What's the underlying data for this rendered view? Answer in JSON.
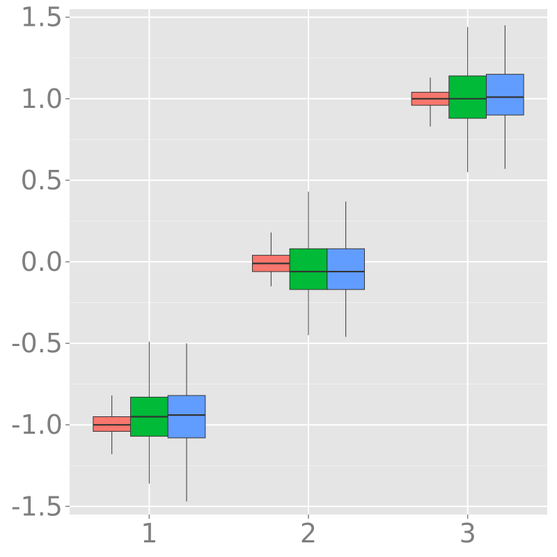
{
  "chart_data": {
    "type": "box",
    "categories": [
      "1",
      "2",
      "3"
    ],
    "ylim": [
      -1.55,
      1.55
    ],
    "yticks": [
      -1.5,
      -1.0,
      -0.5,
      0.0,
      0.5,
      1.0,
      1.5
    ],
    "ytick_labels": [
      "-1.5",
      "-1.0",
      "-0.5",
      "0.0",
      "0.5",
      "1.0",
      "1.5"
    ],
    "grid": true,
    "legend": "none",
    "series": [
      {
        "color": "#F8766D",
        "boxes": [
          {
            "min": -1.18,
            "q1": -1.04,
            "median": -1.0,
            "q3": -0.95,
            "max": -0.82
          },
          {
            "min": -0.15,
            "q1": -0.06,
            "median": -0.01,
            "q3": 0.04,
            "max": 0.18
          },
          {
            "min": 0.83,
            "q1": 0.96,
            "median": 1.0,
            "q3": 1.04,
            "max": 1.13
          }
        ]
      },
      {
        "color": "#00BA38",
        "boxes": [
          {
            "min": -1.36,
            "q1": -1.07,
            "median": -0.95,
            "q3": -0.83,
            "max": -0.49
          },
          {
            "min": -0.45,
            "q1": -0.17,
            "median": -0.06,
            "q3": 0.08,
            "max": 0.43
          },
          {
            "min": 0.55,
            "q1": 0.88,
            "median": 1.0,
            "q3": 1.14,
            "max": 1.44
          }
        ]
      },
      {
        "color": "#619CFF",
        "boxes": [
          {
            "min": -1.47,
            "q1": -1.08,
            "median": -0.94,
            "q3": -0.82,
            "max": -0.5
          },
          {
            "min": -0.46,
            "q1": -0.17,
            "median": -0.06,
            "q3": 0.08,
            "max": 0.37
          },
          {
            "min": 0.57,
            "q1": 0.9,
            "median": 1.01,
            "q3": 1.15,
            "max": 1.45
          }
        ]
      }
    ]
  }
}
